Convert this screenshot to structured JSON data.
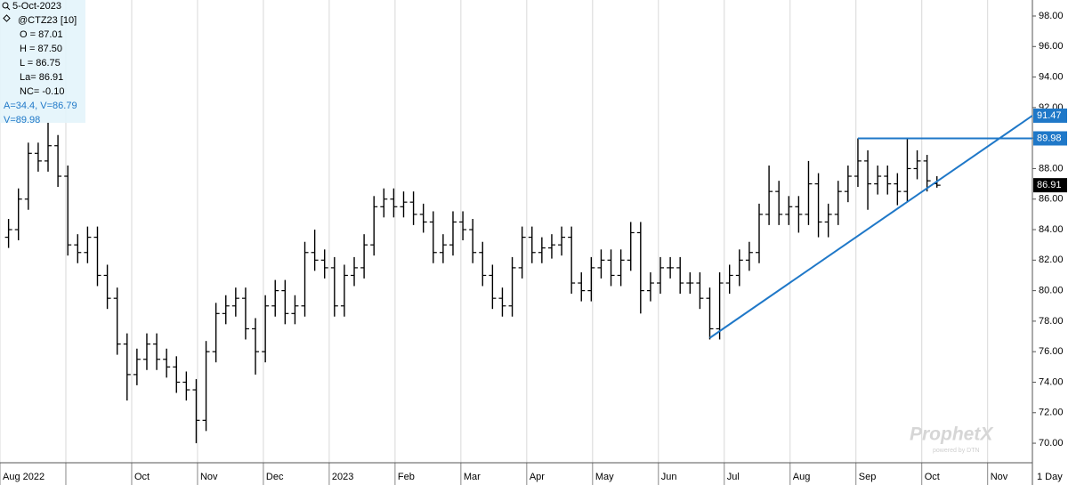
{
  "chart_data": {
    "type": "ohlc",
    "color": "#000000",
    "grid": "x",
    "info": [
      "5-Oct-2023",
      "@CTZ23 [10]",
      "O = 87.01",
      "H = 87.50",
      "L = 86.75",
      "La= 86.91",
      "NC= -0.10",
      "A=34.4, V=86.79",
      "V=89.98"
    ],
    "info_highlight_color": "#1f78c8",
    "watermark": "ProphetX",
    "watermark_sub": "powered by DTN",
    "interval": "1 Day",
    "x": [
      0.13,
      0.28,
      0.43,
      0.58,
      0.73,
      0.88,
      1.03,
      1.18,
      1.33,
      1.48,
      1.63,
      1.78,
      1.93,
      2.08,
      2.23,
      2.38,
      2.53,
      2.68,
      2.83,
      2.98,
      3.13,
      3.28,
      3.43,
      3.58,
      3.73,
      3.88,
      4.03,
      4.18,
      4.33,
      4.48,
      4.63,
      4.78,
      4.93,
      5.08,
      5.23,
      5.38,
      5.53,
      5.68,
      5.83,
      5.98,
      6.13,
      6.28,
      6.43,
      6.58,
      6.73,
      6.88,
      7.03,
      7.18,
      7.33,
      7.48,
      7.63,
      7.78,
      7.93,
      8.08,
      8.23,
      8.38,
      8.53,
      8.68,
      8.83,
      8.98,
      9.13,
      9.28,
      9.43,
      9.58,
      9.73,
      9.88,
      10.03,
      10.18,
      10.33,
      10.48,
      10.63,
      10.78,
      10.93,
      11.08,
      11.23,
      11.38,
      11.53,
      11.68,
      11.83,
      11.98,
      12.13,
      12.28,
      12.43,
      12.58,
      12.73,
      12.88,
      13.03,
      13.18,
      13.33,
      13.48,
      13.63,
      13.78,
      13.93,
      14.08,
      14.23
    ],
    "open": [
      83.5,
      84,
      86,
      89,
      88.5,
      89.5,
      87.5,
      83,
      82.5,
      83.5,
      81,
      79.5,
      76.5,
      74.5,
      75.5,
      76.5,
      75.5,
      75,
      74,
      73.5,
      71.5,
      76,
      78.5,
      79,
      79.5,
      77.5,
      76,
      79,
      80,
      78.5,
      79,
      82.5,
      82,
      81.5,
      79,
      81,
      81.5,
      83,
      85.5,
      86,
      85.5,
      85.8,
      85,
      84.5,
      82.5,
      83,
      84.5,
      84,
      82.5,
      81,
      79.5,
      79,
      81.5,
      83.5,
      82.5,
      82.8,
      83,
      83.5,
      80.5,
      80,
      81.5,
      82,
      81,
      82,
      83.8,
      80,
      80.5,
      81.5,
      81.5,
      80.5,
      80.5,
      79.5,
      77.5,
      80.5,
      81,
      82,
      82.5,
      85,
      86.5,
      85,
      85.5,
      85,
      87,
      84.5,
      85,
      86.5,
      87.5,
      88.5,
      87,
      87.5,
      87,
      86.5,
      88,
      88.5,
      87.01
    ],
    "high": [
      84.7,
      86.7,
      89.7,
      89.7,
      91,
      90.2,
      88.2,
      83.7,
      84.2,
      84.2,
      81.7,
      80.2,
      77.2,
      76.2,
      77.2,
      77.2,
      76.2,
      75.7,
      74.7,
      74.2,
      76.7,
      79.2,
      79.7,
      80.2,
      80.2,
      78.2,
      79.7,
      80.7,
      80.7,
      79.7,
      83.2,
      84,
      82.7,
      82.2,
      81.7,
      82.2,
      83.7,
      86.2,
      86.7,
      86.7,
      86.5,
      86.5,
      85.7,
      85.2,
      83.7,
      85.2,
      85.2,
      84.7,
      83.2,
      81.7,
      80.2,
      82.2,
      84.2,
      84.2,
      83.5,
      83.7,
      84.2,
      84.2,
      81.2,
      82.2,
      82.7,
      82.7,
      82.7,
      84.5,
      84.5,
      81.2,
      82.2,
      82.2,
      82.2,
      81.2,
      81.2,
      80.2,
      81.2,
      81.7,
      82.7,
      83.2,
      85.7,
      88.2,
      87.2,
      86.2,
      86.2,
      88.5,
      87.7,
      85.7,
      87.2,
      88.2,
      89.98,
      89.2,
      88.2,
      88.2,
      87.7,
      89.98,
      89.2,
      88.9,
      87.5
    ],
    "low": [
      82.8,
      83.3,
      85.3,
      87.8,
      87.8,
      86.8,
      82.3,
      81.8,
      81.8,
      80.3,
      78.8,
      75.8,
      72.8,
      73.8,
      74.8,
      74.8,
      74.3,
      73.3,
      72.8,
      70,
      70.8,
      75.3,
      77.8,
      78.3,
      76.8,
      74.5,
      75.3,
      78.3,
      77.8,
      77.8,
      78.3,
      81.3,
      80.8,
      78.3,
      78.3,
      80.3,
      80.8,
      82.3,
      84.8,
      84.8,
      84.8,
      84.3,
      83.8,
      81.8,
      81.8,
      82.3,
      83.3,
      81.8,
      80.3,
      78.8,
      78.3,
      78.3,
      80.8,
      81.8,
      81.8,
      82.1,
      82.3,
      79.8,
      79.3,
      79.3,
      80.8,
      80.3,
      80.3,
      81.3,
      78.5,
      79.3,
      79.8,
      80.8,
      79.8,
      79.8,
      78.8,
      76.8,
      76.8,
      79.8,
      80.3,
      81.3,
      81.8,
      84.3,
      84.3,
      84.3,
      83.8,
      84.3,
      83.5,
      83.5,
      84.3,
      85.8,
      86.8,
      85.3,
      86.3,
      86.3,
      85.6,
      85.8,
      87.3,
      86.5,
      86.75
    ],
    "close": [
      84,
      86,
      89,
      88.5,
      89.5,
      87.5,
      83,
      82.5,
      83.5,
      81,
      79.5,
      76.5,
      74.5,
      75.5,
      76.5,
      75.5,
      75,
      74,
      73.5,
      71.5,
      76,
      78.5,
      79,
      79.5,
      77.5,
      76,
      79,
      80,
      78.5,
      79,
      82.5,
      82,
      81.5,
      79,
      81,
      81.5,
      83,
      85.5,
      86,
      85.5,
      85.8,
      85,
      84.5,
      82.5,
      83,
      84.5,
      84,
      82.5,
      81,
      79.5,
      79,
      81.5,
      83.5,
      82.5,
      82.8,
      83,
      83.5,
      80.5,
      80,
      81.5,
      82,
      81,
      82,
      83.8,
      80,
      80.5,
      81.5,
      81.5,
      80.5,
      80.5,
      79.5,
      77.5,
      80.5,
      81,
      82,
      82.5,
      85,
      86.5,
      85,
      85.5,
      85,
      87,
      84.5,
      85,
      86.5,
      87.5,
      88.5,
      87,
      87.5,
      87,
      86.5,
      88,
      88.5,
      87.2,
      86.91
    ],
    "trendlines": [
      {
        "x": [
          13.03,
          15.68
        ],
        "y": [
          89.98,
          89.98
        ],
        "color": "#1f78c8"
      },
      {
        "x": [
          10.78,
          15.68
        ],
        "y": [
          76.9,
          91.47
        ],
        "color": "#1f78c8"
      }
    ],
    "xlim": [
      0,
      15.68
    ],
    "xticks": [
      {
        "value": 0,
        "label": "Aug 2022"
      },
      {
        "value": 1,
        "label": null
      },
      {
        "value": 2,
        "label": "Oct"
      },
      {
        "value": 3,
        "label": "Nov"
      },
      {
        "value": 4,
        "label": "Dec"
      },
      {
        "value": 5,
        "label": "2023"
      },
      {
        "value": 6,
        "label": "Feb"
      },
      {
        "value": 7,
        "label": "Mar"
      },
      {
        "value": 8,
        "label": "Apr"
      },
      {
        "value": 9,
        "label": "May"
      },
      {
        "value": 10,
        "label": "Jun"
      },
      {
        "value": 11,
        "label": "Jul"
      },
      {
        "value": 12,
        "label": "Aug"
      },
      {
        "value": 13,
        "label": "Sep"
      },
      {
        "value": 14,
        "label": "Oct"
      },
      {
        "value": 15,
        "label": "Nov"
      }
    ],
    "ylim": [
      68.72,
      99.05
    ],
    "yticks": [
      {
        "value": 70,
        "label": "70.00"
      },
      {
        "value": 72,
        "label": "72.00"
      },
      {
        "value": 74,
        "label": "74.00"
      },
      {
        "value": 76,
        "label": "76.00"
      },
      {
        "value": 78,
        "label": "78.00"
      },
      {
        "value": 80,
        "label": "80.00"
      },
      {
        "value": 82,
        "label": "82.00"
      },
      {
        "value": 84,
        "label": "84.00"
      },
      {
        "value": 86,
        "label": "86.00"
      },
      {
        "value": 88,
        "label": "88.00"
      },
      {
        "value": 90,
        "label": "90.00"
      },
      {
        "value": 92,
        "label": "92.00"
      },
      {
        "value": 94,
        "label": "94.00"
      },
      {
        "value": 96,
        "label": "96.00"
      },
      {
        "value": 98,
        "label": "98.00"
      }
    ]
  }
}
